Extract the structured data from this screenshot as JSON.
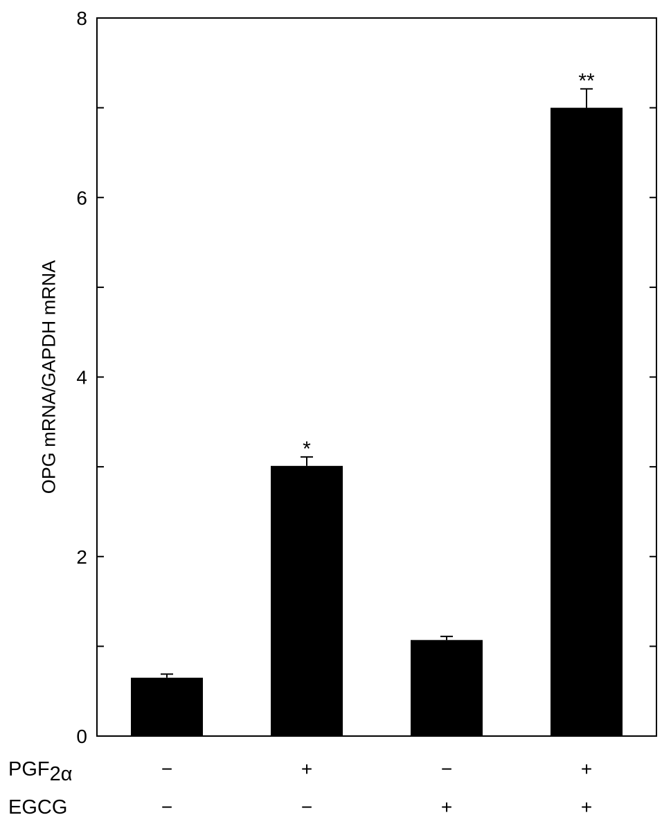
{
  "chart_data": {
    "type": "bar",
    "title": "",
    "xlabel": "",
    "ylabel": "OPG mRNA/GAPDH mRNA",
    "ylim": [
      0,
      8
    ],
    "yticks": [
      0,
      2,
      4,
      6,
      8
    ],
    "ytick_labels": [
      "0",
      "2",
      "4",
      "6",
      "8"
    ],
    "grid": false,
    "bar_color": "#000000",
    "categories": [
      "PGF2α −, EGCG −",
      "PGF2α +, EGCG −",
      "PGF2α −, EGCG +",
      "PGF2α +, EGCG +"
    ],
    "values": [
      0.65,
      3.01,
      1.07,
      7.0
    ],
    "errors": [
      0.04,
      0.1,
      0.04,
      0.21
    ],
    "significance": [
      "",
      "*",
      "",
      "**"
    ],
    "conditions": [
      {
        "label_main": "PGF",
        "label_sub": "2α",
        "values": [
          "−",
          "+",
          "−",
          "+"
        ]
      },
      {
        "label_main": "EGCG",
        "label_sub": "",
        "values": [
          "−",
          "−",
          "+",
          "+"
        ]
      }
    ]
  }
}
